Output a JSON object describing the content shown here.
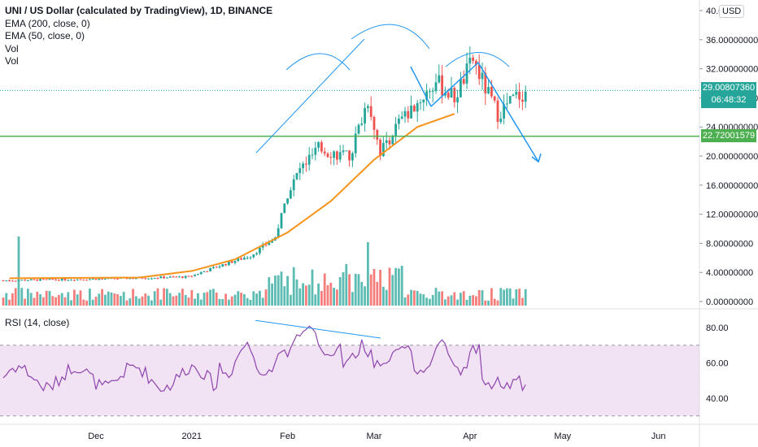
{
  "header": {
    "title": "UNI / US Dollar (calculated by TradingView), 1D, BINANCE",
    "indicators": [
      "EMA (200, close, 0)",
      "EMA (50, close, 0)",
      "Vol",
      "Vol"
    ],
    "currency": "USD"
  },
  "price_badges": {
    "last_price": "29.00807360",
    "countdown": "06:48:32",
    "level": "22.72001579"
  },
  "rsi_panel": {
    "label": "RSI (14, close)"
  },
  "colors": {
    "up": "#26a69a",
    "down": "#ef5350",
    "ema50": "#f7931a",
    "trendline": "#2196f3",
    "support_level": "#4caf50",
    "rsi_line": "#8e44ad",
    "rsi_band": "#e1bee7"
  },
  "chart_data": [
    {
      "type": "candlestick",
      "title": "UNI / US Dollar (calculated by TradingView), 1D, BINANCE",
      "yaxis_ticks": [
        "0.00000000",
        "4.00000000",
        "8.00000000",
        "12.00000000",
        "16.00000000",
        "20.00000000",
        "24.00000000",
        "28.00000000",
        "32.00000000",
        "36.00000000",
        "40.0"
      ],
      "ylim": [
        0,
        40
      ],
      "xaxis_ticks": [
        "Dec",
        "2021",
        "Feb",
        "Mar",
        "Apr",
        "May",
        "Jun"
      ],
      "series": [
        {
          "name": "EMA (50, close, 0)",
          "points": [
            [
              "2020-11-03",
              3.2
            ],
            [
              "2020-12-15",
              3.3
            ],
            [
              "2021-01-01",
              4.2
            ],
            [
              "2021-01-15",
              5.8
            ],
            [
              "2021-02-01",
              9.5
            ],
            [
              "2021-02-15",
              13.8
            ],
            [
              "2021-03-01",
              19.5
            ],
            [
              "2021-03-15",
              24.0
            ],
            [
              "2021-03-27",
              25.8
            ]
          ]
        }
      ],
      "support_level": 22.72001579,
      "last_price": 29.0080736,
      "annotations": [
        "ascending trendline",
        "head and shoulders arcs",
        "projected path to ~20.5"
      ]
    },
    {
      "type": "line",
      "title": "RSI (14, close)",
      "yaxis_ticks": [
        "40.00",
        "60.00",
        "80.00"
      ],
      "band": [
        30,
        70
      ]
    }
  ]
}
